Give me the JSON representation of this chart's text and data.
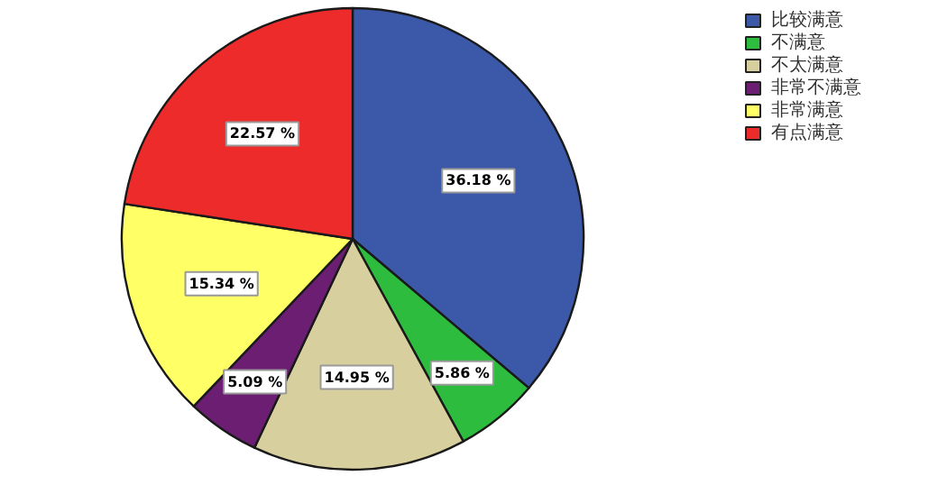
{
  "chart_data": {
    "type": "pie",
    "categories": [
      "比较满意",
      "不满意",
      "不太满意",
      "非常不满意",
      "非常满意",
      "有点满意"
    ],
    "values": [
      36.18,
      5.86,
      14.95,
      5.09,
      15.34,
      22.57
    ],
    "colors": [
      "#3c58a8",
      "#2ebc3e",
      "#d8cf9e",
      "#6c1f72",
      "#ffff66",
      "#ee2b2b"
    ],
    "value_labels": [
      "36.18 %",
      "5.86 %",
      "14.95 %",
      "5.09 %",
      "15.34 %",
      "22.57 %"
    ],
    "legend": "top right"
  }
}
